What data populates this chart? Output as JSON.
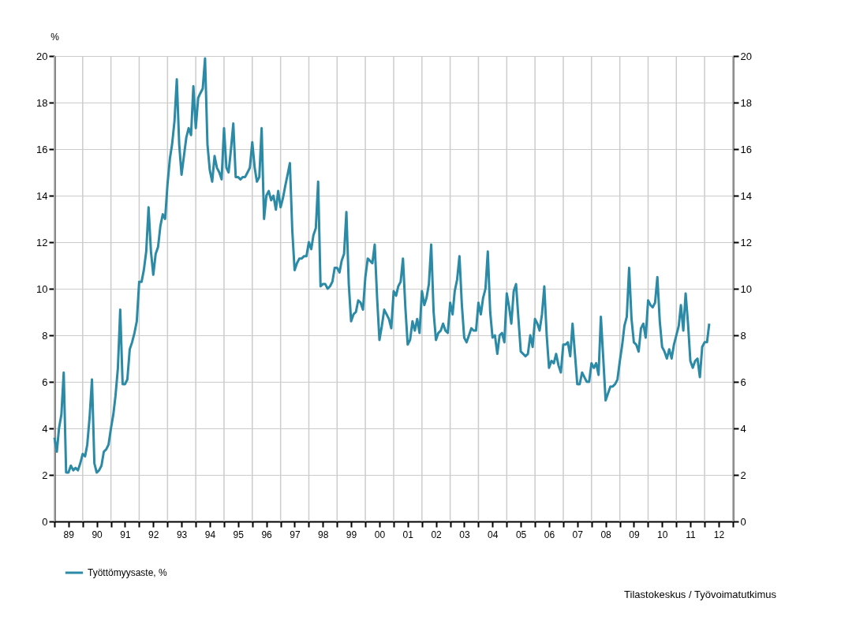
{
  "chart_data": {
    "type": "line",
    "ylabel": "%",
    "legend": "bottom",
    "grid": true,
    "line_style": "solid",
    "xlim": [
      "1989-01",
      "2013-01"
    ],
    "xticks": [
      {
        "value": "1989-01",
        "label": null
      },
      {
        "value": "1989-07",
        "label": "89"
      },
      {
        "value": "1990-01",
        "label": null
      },
      {
        "value": "1990-07",
        "label": "90"
      },
      {
        "value": "1991-01",
        "label": null
      },
      {
        "value": "1991-07",
        "label": "91"
      },
      {
        "value": "1992-01",
        "label": null
      },
      {
        "value": "1992-07",
        "label": "92"
      },
      {
        "value": "1993-01",
        "label": null
      },
      {
        "value": "1993-07",
        "label": "93"
      },
      {
        "value": "1994-01",
        "label": null
      },
      {
        "value": "1994-07",
        "label": "94"
      },
      {
        "value": "1995-01",
        "label": null
      },
      {
        "value": "1995-07",
        "label": "95"
      },
      {
        "value": "1996-01",
        "label": null
      },
      {
        "value": "1996-07",
        "label": "96"
      },
      {
        "value": "1997-01",
        "label": null
      },
      {
        "value": "1997-07",
        "label": "97"
      },
      {
        "value": "1998-01",
        "label": null
      },
      {
        "value": "1998-07",
        "label": "98"
      },
      {
        "value": "1999-01",
        "label": null
      },
      {
        "value": "1999-07",
        "label": "99"
      },
      {
        "value": "2000-01",
        "label": null
      },
      {
        "value": "2000-07",
        "label": "00"
      },
      {
        "value": "2001-01",
        "label": null
      },
      {
        "value": "2001-07",
        "label": "01"
      },
      {
        "value": "2002-01",
        "label": null
      },
      {
        "value": "2002-07",
        "label": "02"
      },
      {
        "value": "2003-01",
        "label": null
      },
      {
        "value": "2003-07",
        "label": "03"
      },
      {
        "value": "2004-01",
        "label": null
      },
      {
        "value": "2004-07",
        "label": "04"
      },
      {
        "value": "2005-01",
        "label": null
      },
      {
        "value": "2005-07",
        "label": "05"
      },
      {
        "value": "2006-01",
        "label": null
      },
      {
        "value": "2006-07",
        "label": "06"
      },
      {
        "value": "2007-01",
        "label": null
      },
      {
        "value": "2007-07",
        "label": "07"
      },
      {
        "value": "2008-01",
        "label": null
      },
      {
        "value": "2008-07",
        "label": "08"
      },
      {
        "value": "2009-01",
        "label": null
      },
      {
        "value": "2009-07",
        "label": "09"
      },
      {
        "value": "2010-01",
        "label": null
      },
      {
        "value": "2010-07",
        "label": "10"
      },
      {
        "value": "2011-01",
        "label": null
      },
      {
        "value": "2011-07",
        "label": "11"
      },
      {
        "value": "2012-01",
        "label": null
      },
      {
        "value": "2012-07",
        "label": "12"
      },
      {
        "value": "2013-01",
        "label": null
      }
    ],
    "ylim": [
      0,
      20
    ],
    "yticks": [
      0,
      2,
      4,
      6,
      8,
      10,
      12,
      14,
      16,
      18,
      20
    ],
    "y2lim": [
      0,
      20
    ],
    "y2ticks": [
      0,
      2,
      4,
      6,
      8,
      10,
      12,
      14,
      16,
      18,
      20
    ],
    "annotations": [
      "Tilastokeskus / Työvoimatutkimus"
    ],
    "x": [
      "1989-01",
      "1989-02",
      "1989-03",
      "1989-04",
      "1989-05",
      "1989-06",
      "1989-07",
      "1989-08",
      "1989-09",
      "1989-10",
      "1989-11",
      "1989-12",
      "1990-01",
      "1990-02",
      "1990-03",
      "1990-04",
      "1990-05",
      "1990-06",
      "1990-07",
      "1990-08",
      "1990-09",
      "1990-10",
      "1990-11",
      "1990-12",
      "1991-01",
      "1991-02",
      "1991-03",
      "1991-04",
      "1991-05",
      "1991-06",
      "1991-07",
      "1991-08",
      "1991-09",
      "1991-10",
      "1991-11",
      "1991-12",
      "1992-01",
      "1992-02",
      "1992-03",
      "1992-04",
      "1992-05",
      "1992-06",
      "1992-07",
      "1992-08",
      "1992-09",
      "1992-10",
      "1992-11",
      "1992-12",
      "1993-01",
      "1993-02",
      "1993-03",
      "1993-04",
      "1993-05",
      "1993-06",
      "1993-07",
      "1993-08",
      "1993-09",
      "1993-10",
      "1993-11",
      "1993-12",
      "1994-01",
      "1994-02",
      "1994-03",
      "1994-04",
      "1994-05",
      "1994-06",
      "1994-07",
      "1994-08",
      "1994-09",
      "1994-10",
      "1994-11",
      "1994-12",
      "1995-01",
      "1995-02",
      "1995-03",
      "1995-04",
      "1995-05",
      "1995-06",
      "1995-07",
      "1995-08",
      "1995-09",
      "1995-10",
      "1995-11",
      "1995-12",
      "1996-01",
      "1996-02",
      "1996-03",
      "1996-04",
      "1996-05",
      "1996-06",
      "1996-07",
      "1996-08",
      "1996-09",
      "1996-10",
      "1996-11",
      "1996-12",
      "1997-01",
      "1997-02",
      "1997-03",
      "1997-04",
      "1997-05",
      "1997-06",
      "1997-07",
      "1997-08",
      "1997-09",
      "1997-10",
      "1997-11",
      "1997-12",
      "1998-01",
      "1998-02",
      "1998-03",
      "1998-04",
      "1998-05",
      "1998-06",
      "1998-07",
      "1998-08",
      "1998-09",
      "1998-10",
      "1998-11",
      "1998-12",
      "1999-01",
      "1999-02",
      "1999-03",
      "1999-04",
      "1999-05",
      "1999-06",
      "1999-07",
      "1999-08",
      "1999-09",
      "1999-10",
      "1999-11",
      "1999-12",
      "2000-01",
      "2000-02",
      "2000-03",
      "2000-04",
      "2000-05",
      "2000-06",
      "2000-07",
      "2000-08",
      "2000-09",
      "2000-10",
      "2000-11",
      "2000-12",
      "2001-01",
      "2001-02",
      "2001-03",
      "2001-04",
      "2001-05",
      "2001-06",
      "2001-07",
      "2001-08",
      "2001-09",
      "2001-10",
      "2001-11",
      "2001-12",
      "2002-01",
      "2002-02",
      "2002-03",
      "2002-04",
      "2002-05",
      "2002-06",
      "2002-07",
      "2002-08",
      "2002-09",
      "2002-10",
      "2002-11",
      "2002-12",
      "2003-01",
      "2003-02",
      "2003-03",
      "2003-04",
      "2003-05",
      "2003-06",
      "2003-07",
      "2003-08",
      "2003-09",
      "2003-10",
      "2003-11",
      "2003-12",
      "2004-01",
      "2004-02",
      "2004-03",
      "2004-04",
      "2004-05",
      "2004-06",
      "2004-07",
      "2004-08",
      "2004-09",
      "2004-10",
      "2004-11",
      "2004-12",
      "2005-01",
      "2005-02",
      "2005-03",
      "2005-04",
      "2005-05",
      "2005-06",
      "2005-07",
      "2005-08",
      "2005-09",
      "2005-10",
      "2005-11",
      "2005-12",
      "2006-01",
      "2006-02",
      "2006-03",
      "2006-04",
      "2006-05",
      "2006-06",
      "2006-07",
      "2006-08",
      "2006-09",
      "2006-10",
      "2006-11",
      "2006-12",
      "2007-01",
      "2007-02",
      "2007-03",
      "2007-04",
      "2007-05",
      "2007-06",
      "2007-07",
      "2007-08",
      "2007-09",
      "2007-10",
      "2007-11",
      "2007-12",
      "2008-01",
      "2008-02",
      "2008-03",
      "2008-04",
      "2008-05",
      "2008-06",
      "2008-07",
      "2008-08",
      "2008-09",
      "2008-10",
      "2008-11",
      "2008-12",
      "2009-01",
      "2009-02",
      "2009-03",
      "2009-04",
      "2009-05",
      "2009-06",
      "2009-07",
      "2009-08",
      "2009-09",
      "2009-10",
      "2009-11",
      "2009-12",
      "2010-01",
      "2010-02",
      "2010-03",
      "2010-04",
      "2010-05",
      "2010-06",
      "2010-07",
      "2010-08",
      "2010-09",
      "2010-10",
      "2010-11",
      "2010-12",
      "2011-01",
      "2011-02",
      "2011-03",
      "2011-04",
      "2011-05",
      "2011-06",
      "2011-07",
      "2011-08",
      "2011-09",
      "2011-10",
      "2011-11",
      "2011-12",
      "2012-01",
      "2012-02",
      "2012-03"
    ],
    "series": [
      {
        "name": "Työttömyysaste, %",
        "color": "#2b8aa6",
        "values": [
          3.6,
          3.0,
          4.0,
          4.6,
          6.4,
          2.1,
          2.1,
          2.4,
          2.2,
          2.3,
          2.2,
          2.5,
          2.9,
          2.8,
          3.3,
          4.5,
          6.1,
          2.5,
          2.1,
          2.2,
          2.4,
          3.0,
          3.1,
          3.3,
          4.0,
          4.6,
          5.4,
          6.6,
          9.1,
          5.9,
          5.9,
          6.1,
          7.4,
          7.7,
          8.1,
          8.6,
          10.3,
          10.3,
          10.8,
          11.6,
          13.5,
          11.6,
          10.6,
          11.5,
          11.8,
          12.7,
          13.2,
          13.0,
          14.5,
          15.6,
          16.2,
          17.2,
          19.0,
          16.2,
          14.9,
          15.7,
          16.5,
          16.9,
          16.6,
          18.7,
          16.9,
          18.2,
          18.4,
          18.6,
          19.9,
          16.2,
          15.1,
          14.6,
          15.7,
          15.2,
          15.0,
          14.7,
          16.9,
          15.2,
          15.0,
          16.0,
          17.1,
          14.8,
          14.8,
          14.7,
          14.8,
          14.8,
          15.0,
          15.2,
          16.3,
          15.2,
          14.6,
          14.8,
          16.9,
          13.0,
          14.0,
          14.2,
          13.8,
          14.0,
          13.4,
          14.2,
          13.5,
          13.9,
          14.4,
          14.9,
          15.4,
          12.5,
          10.8,
          11.1,
          11.3,
          11.3,
          11.4,
          11.4,
          12.0,
          11.7,
          12.3,
          12.6,
          14.6,
          10.1,
          10.2,
          10.2,
          10.0,
          10.1,
          10.3,
          10.9,
          10.9,
          10.7,
          11.2,
          11.5,
          13.3,
          10.2,
          8.6,
          8.9,
          9.0,
          9.5,
          9.4,
          9.1,
          10.5,
          11.3,
          11.2,
          11.1,
          11.9,
          9.6,
          7.8,
          8.4,
          9.1,
          8.9,
          8.7,
          8.3,
          9.9,
          9.7,
          10.1,
          10.3,
          11.3,
          9.2,
          7.6,
          7.8,
          8.6,
          8.2,
          8.7,
          8.1,
          9.9,
          9.3,
          9.6,
          10.2,
          11.9,
          9.0,
          7.8,
          8.1,
          8.2,
          8.5,
          8.2,
          8.1,
          9.4,
          8.9,
          9.9,
          10.4,
          11.4,
          9.3,
          7.9,
          7.7,
          8.0,
          8.3,
          8.2,
          8.2,
          9.4,
          8.9,
          9.6,
          10.0,
          11.6,
          9.0,
          7.9,
          8.0,
          7.2,
          8.0,
          8.1,
          7.7,
          9.8,
          9.2,
          8.5,
          9.9,
          10.2,
          8.7,
          7.3,
          7.2,
          7.1,
          7.2,
          8.0,
          7.5,
          8.7,
          8.5,
          8.2,
          8.9,
          10.1,
          8.0,
          6.6,
          6.9,
          6.8,
          7.2,
          6.7,
          6.4,
          7.6,
          7.6,
          7.7,
          7.1,
          8.5,
          7.2,
          5.9,
          5.9,
          6.4,
          6.2,
          6.0,
          6.0,
          6.8,
          6.6,
          6.8,
          6.3,
          8.8,
          7.0,
          5.2,
          5.5,
          5.8,
          5.8,
          5.9,
          6.1,
          6.9,
          7.6,
          8.4,
          8.8,
          10.9,
          8.7,
          7.7,
          7.6,
          7.3,
          8.3,
          8.5,
          7.9,
          9.5,
          9.3,
          9.2,
          9.4,
          10.5,
          8.6,
          7.5,
          7.3,
          7.0,
          7.4,
          7.0,
          7.6,
          8.0,
          8.4,
          9.3,
          8.2,
          9.8,
          8.5,
          6.9,
          6.6,
          6.9,
          7.0,
          6.2,
          7.5,
          7.7,
          7.7,
          8.5
        ]
      }
    ]
  }
}
